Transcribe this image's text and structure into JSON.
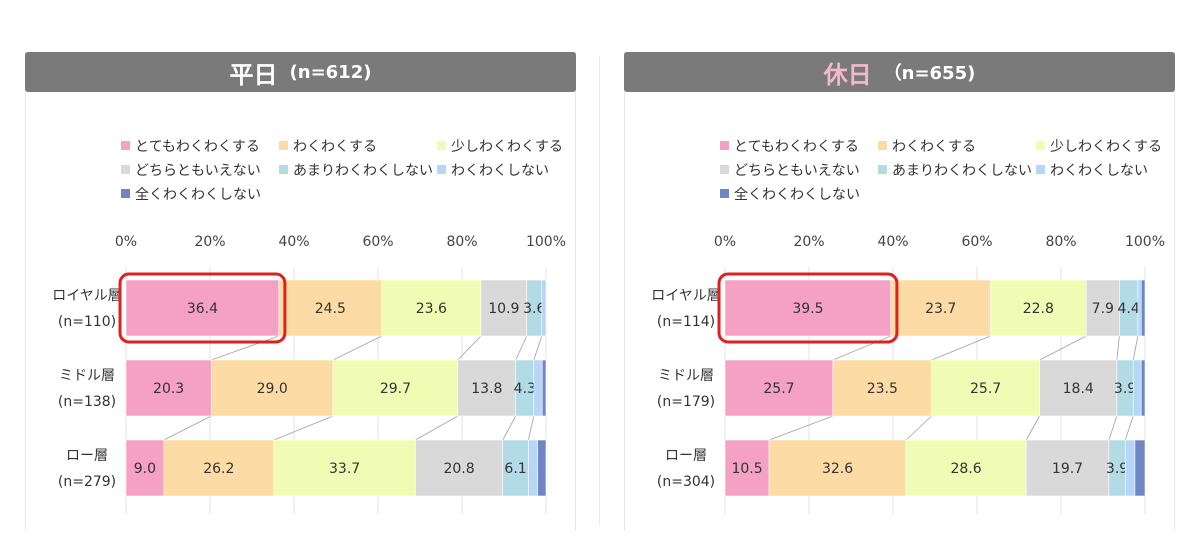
{
  "panels": [
    {
      "title": "平日",
      "subtitle": "(n=612)",
      "title_color": "#ffffff"
    },
    {
      "title": "休日",
      "subtitle": "（n=655)",
      "title_color": "#f6b6ce"
    }
  ],
  "legend": [
    {
      "label": "とてもわくわくする",
      "color": "#f4a1c4"
    },
    {
      "label": "わくわくする",
      "color": "#fddba4"
    },
    {
      "label": "少しわくわくする",
      "color": "#f0fcb4"
    },
    {
      "label": "どちらともいえない",
      "color": "#d9d9d9"
    },
    {
      "label": "あまりわくわくしない",
      "color": "#b2dbe5"
    },
    {
      "label": "わくわくしない",
      "color": "#b5d6f7"
    },
    {
      "label": "全くわくわくしない",
      "color": "#6f86c2"
    }
  ],
  "highlight_color": "#e0201c",
  "chart_data": [
    {
      "type": "bar",
      "orientation": "horizontal-stacked-100",
      "title": "平日 (n=612)",
      "x_ticks": [
        "0%",
        "20%",
        "40%",
        "60%",
        "80%",
        "100%"
      ],
      "xlim": [
        0,
        100
      ],
      "categories": [
        "ロイヤル層",
        "ミドル層",
        "ロー層"
      ],
      "category_n": [
        "(n=110)",
        "(n=138)",
        "(n=279)"
      ],
      "series": [
        {
          "name": "とてもわくわくする",
          "values": [
            36.4,
            20.3,
            9.0
          ]
        },
        {
          "name": "わくわくする",
          "values": [
            24.5,
            29.0,
            26.2
          ]
        },
        {
          "name": "少しわくわくする",
          "values": [
            23.6,
            29.7,
            33.7
          ]
        },
        {
          "name": "どちらともいえない",
          "values": [
            10.9,
            13.8,
            20.8
          ]
        },
        {
          "name": "あまりわくわくしない",
          "values": [
            3.6,
            4.3,
            6.1
          ]
        },
        {
          "name": "わくわくしない",
          "values": [
            1.0,
            2.0,
            2.2
          ]
        },
        {
          "name": "全くわくわくしない",
          "values": [
            0.0,
            0.9,
            2.0
          ]
        }
      ],
      "label_min": 3.5,
      "highlight": {
        "category_index": 0,
        "series_index": 0
      },
      "legend_position": "top",
      "grid": true
    },
    {
      "type": "bar",
      "orientation": "horizontal-stacked-100",
      "title": "休日（n=655)",
      "x_ticks": [
        "0%",
        "20%",
        "40%",
        "60%",
        "80%",
        "100%"
      ],
      "xlim": [
        0,
        100
      ],
      "categories": [
        "ロイヤル層",
        "ミドル層",
        "ロー層"
      ],
      "category_n": [
        "(n=114)",
        "(n=179)",
        "(n=304)"
      ],
      "series": [
        {
          "name": "とてもわくわくする",
          "values": [
            39.5,
            25.7,
            10.5
          ]
        },
        {
          "name": "わくわくする",
          "values": [
            23.7,
            23.5,
            32.6
          ]
        },
        {
          "name": "少しわくわくする",
          "values": [
            22.8,
            25.7,
            28.6
          ]
        },
        {
          "name": "どちらともいえない",
          "values": [
            7.9,
            18.4,
            19.7
          ]
        },
        {
          "name": "あまりわくわくしない",
          "values": [
            4.4,
            3.9,
            3.9
          ]
        },
        {
          "name": "わくわくしない",
          "values": [
            0.8,
            1.9,
            2.3
          ]
        },
        {
          "name": "全くわくわくしない",
          "values": [
            0.9,
            0.9,
            2.4
          ]
        }
      ],
      "label_min": 3.5,
      "highlight": {
        "category_index": 0,
        "series_index": 0
      },
      "legend_position": "top",
      "grid": true
    }
  ]
}
